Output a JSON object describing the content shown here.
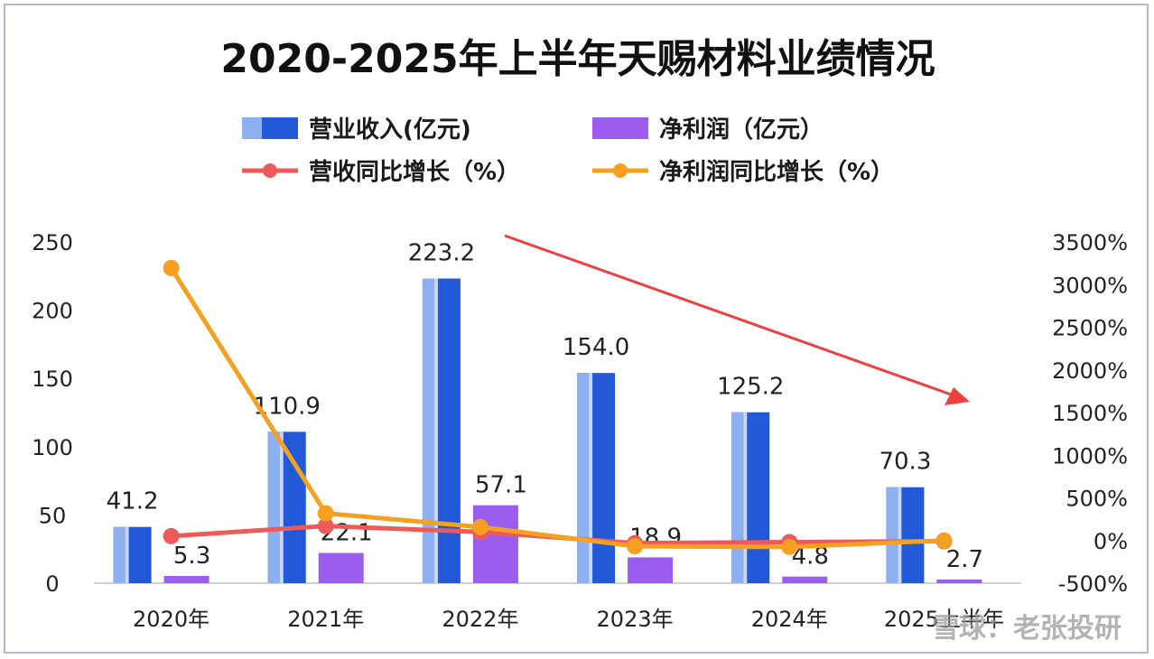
{
  "chart_data": {
    "type": "bar",
    "title": "2020-2025年上半年天赐材料业绩情况",
    "categories": [
      "2020年",
      "2021年",
      "2022年",
      "2023年",
      "2024年",
      "2025上半年"
    ],
    "series": [
      {
        "name": "营业收入(亿元)",
        "kind": "bar",
        "axis": "left",
        "color": "#2159d8",
        "values": [
          41.2,
          110.9,
          223.2,
          154.0,
          125.2,
          70.3
        ],
        "labels": [
          "41.2",
          "110.9",
          "223.2",
          "154.0",
          "125.2",
          "70.3"
        ]
      },
      {
        "name": "净利润（亿元）",
        "kind": "bar",
        "axis": "left",
        "color": "#9b5cf0",
        "values": [
          5.3,
          22.1,
          57.1,
          18.9,
          4.8,
          2.7
        ],
        "labels": [
          "5.3",
          "22.1",
          "57.1",
          "18.9",
          "4.8",
          "2.7"
        ]
      },
      {
        "name": "营收同比增长（%）",
        "kind": "line",
        "axis": "right",
        "color": "#ee5a5a",
        "values": [
          52,
          170,
          101,
          -31,
          -19,
          -8
        ]
      },
      {
        "name": "净利润同比增长（%）",
        "kind": "line",
        "axis": "right",
        "color": "#f5a021",
        "values": [
          3195,
          319,
          158,
          -67,
          -75,
          0
        ]
      }
    ],
    "y_left": {
      "min": 0,
      "max": 250,
      "ticks": [
        0,
        50,
        100,
        150,
        200,
        250
      ]
    },
    "y_right": {
      "min": -500,
      "max": 3500,
      "ticks": [
        -500,
        0,
        500,
        1000,
        1500,
        2000,
        2500,
        3000,
        3500
      ],
      "tick_labels": [
        "-500%",
        "0%",
        "500%",
        "1000%",
        "1500%",
        "2000%",
        "2500%",
        "3000%",
        "3500%"
      ]
    },
    "legend_position": "top",
    "annotation": {
      "type": "downtrend-arrow",
      "color": "#ee4040"
    }
  },
  "watermark": {
    "text": "雪球：老张投研"
  }
}
